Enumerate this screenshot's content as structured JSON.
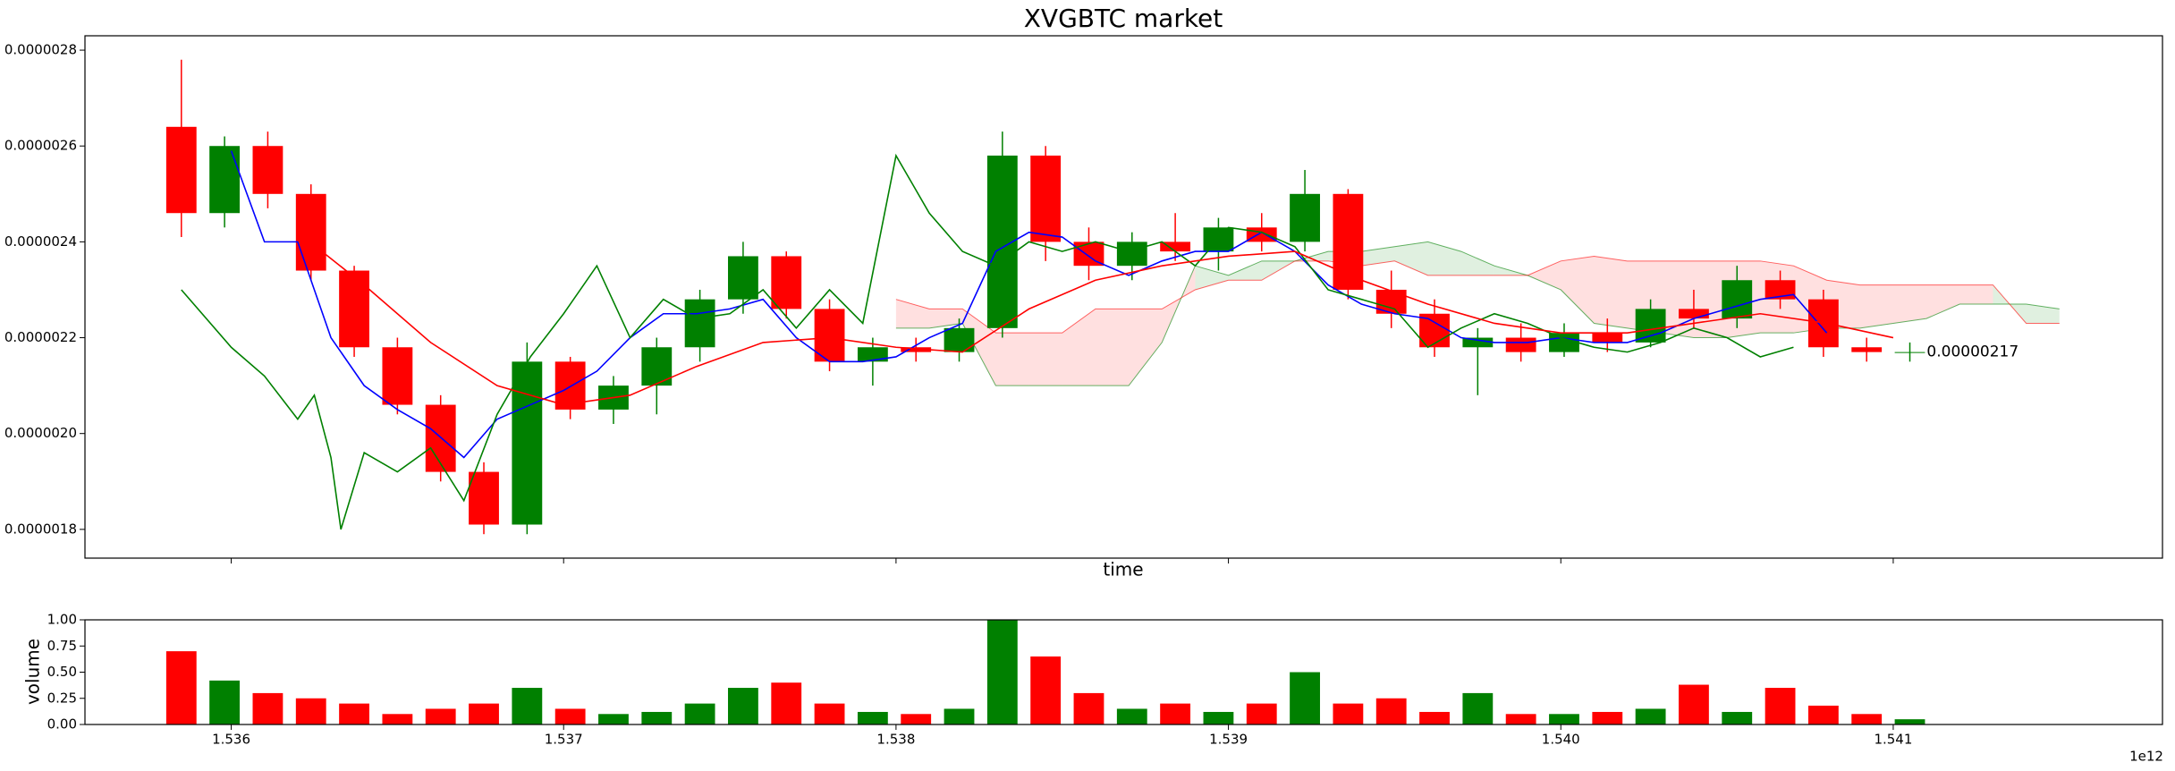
{
  "chart_data": {
    "type": "candlestick",
    "title": "XVGBTC market",
    "xlabel": "time",
    "x_offset_label": "1e12",
    "annotation": "0.00000217",
    "xlim": [
      1.53556,
      1.54181
    ],
    "xticks": [
      1.536,
      1.537,
      1.538,
      1.539,
      {
        "value": 1.54,
        "label": "1.540"
      },
      1.541
    ],
    "ylim": [
      1.74e-06,
      2.83e-06
    ],
    "yticks": [
      {
        "value": 1.8e-06,
        "label": "0.0000018"
      },
      {
        "value": 2e-06,
        "label": "0.0000020"
      },
      {
        "value": 2.2e-06,
        "label": "0.0000022"
      },
      {
        "value": 2.4e-06,
        "label": "0.0000024"
      },
      {
        "value": 2.6e-06,
        "label": "0.0000026"
      },
      {
        "value": 2.8e-06,
        "label": "0.0000028"
      }
    ],
    "colors": {
      "up": "#008000",
      "down": "#ff0000"
    },
    "candles": {
      "x": [
        1.53585,
        1.53598,
        1.53611,
        1.53624,
        1.53637,
        1.5365,
        1.53663,
        1.53676,
        1.53689,
        1.53702,
        1.53715,
        1.53728,
        1.53741,
        1.53754,
        1.53767,
        1.5378,
        1.53793,
        1.53806,
        1.53819,
        1.53832,
        1.53845,
        1.53858,
        1.53871,
        1.53884,
        1.53897,
        1.5391,
        1.53923,
        1.53936,
        1.53949,
        1.53962,
        1.53975,
        1.53988,
        1.54001,
        1.54014,
        1.54027,
        1.5404,
        1.54053,
        1.54066,
        1.54079,
        1.54092,
        1.54105
      ],
      "open": [
        2.64e-06,
        2.46e-06,
        2.6e-06,
        2.5e-06,
        2.34e-06,
        2.18e-06,
        2.06e-06,
        1.92e-06,
        1.81e-06,
        2.15e-06,
        2.05e-06,
        2.1e-06,
        2.18e-06,
        2.28e-06,
        2.37e-06,
        2.26e-06,
        2.15e-06,
        2.18e-06,
        2.17e-06,
        2.22e-06,
        2.58e-06,
        2.4e-06,
        2.35e-06,
        2.4e-06,
        2.38e-06,
        2.43e-06,
        2.4e-06,
        2.5e-06,
        2.3e-06,
        2.25e-06,
        2.18e-06,
        2.2e-06,
        2.17e-06,
        2.21e-06,
        2.19e-06,
        2.26e-06,
        2.24e-06,
        2.32e-06,
        2.28e-06,
        2.18e-06,
        2.17e-06
      ],
      "high": [
        2.78e-06,
        2.62e-06,
        2.63e-06,
        2.52e-06,
        2.35e-06,
        2.2e-06,
        2.08e-06,
        1.94e-06,
        2.19e-06,
        2.16e-06,
        2.12e-06,
        2.2e-06,
        2.3e-06,
        2.4e-06,
        2.38e-06,
        2.28e-06,
        2.2e-06,
        2.2e-06,
        2.24e-06,
        2.63e-06,
        2.6e-06,
        2.43e-06,
        2.42e-06,
        2.46e-06,
        2.45e-06,
        2.46e-06,
        2.55e-06,
        2.51e-06,
        2.34e-06,
        2.28e-06,
        2.22e-06,
        2.23e-06,
        2.23e-06,
        2.24e-06,
        2.28e-06,
        2.3e-06,
        2.35e-06,
        2.34e-06,
        2.3e-06,
        2.2e-06,
        2.19e-06
      ],
      "low": [
        2.41e-06,
        2.43e-06,
        2.47e-06,
        2.32e-06,
        2.16e-06,
        2.04e-06,
        1.9e-06,
        1.79e-06,
        1.79e-06,
        2.03e-06,
        2.02e-06,
        2.04e-06,
        2.15e-06,
        2.25e-06,
        2.24e-06,
        2.13e-06,
        2.1e-06,
        2.15e-06,
        2.15e-06,
        2.2e-06,
        2.36e-06,
        2.32e-06,
        2.32e-06,
        2.36e-06,
        2.34e-06,
        2.38e-06,
        2.38e-06,
        2.28e-06,
        2.22e-06,
        2.16e-06,
        2.08e-06,
        2.15e-06,
        2.16e-06,
        2.17e-06,
        2.18e-06,
        2.22e-06,
        2.22e-06,
        2.26e-06,
        2.16e-06,
        2.15e-06,
        2.15e-06
      ],
      "close": [
        2.46e-06,
        2.6e-06,
        2.5e-06,
        2.34e-06,
        2.18e-06,
        2.06e-06,
        1.92e-06,
        1.81e-06,
        2.15e-06,
        2.05e-06,
        2.1e-06,
        2.18e-06,
        2.28e-06,
        2.37e-06,
        2.26e-06,
        2.15e-06,
        2.18e-06,
        2.17e-06,
        2.22e-06,
        2.58e-06,
        2.4e-06,
        2.35e-06,
        2.4e-06,
        2.38e-06,
        2.43e-06,
        2.4e-06,
        2.5e-06,
        2.3e-06,
        2.25e-06,
        2.18e-06,
        2.2e-06,
        2.17e-06,
        2.21e-06,
        2.19e-06,
        2.26e-06,
        2.24e-06,
        2.32e-06,
        2.28e-06,
        2.18e-06,
        2.17e-06,
        2.17e-06
      ]
    },
    "lines": [
      {
        "color": "#0000ff",
        "x": [
          1.536,
          1.5361,
          1.5362,
          1.5363,
          1.5364,
          1.5365,
          1.5366,
          1.5367,
          1.5368,
          1.5369,
          1.537,
          1.5371,
          1.5372,
          1.5373,
          1.5374,
          1.5375,
          1.5376,
          1.5377,
          1.5378,
          1.5379,
          1.538,
          1.5381,
          1.5382,
          1.5383,
          1.5384,
          1.5385,
          1.5386,
          1.5387,
          1.5388,
          1.5389,
          1.539,
          1.5391,
          1.5392,
          1.5393,
          1.5394,
          1.5395,
          1.5396,
          1.5397,
          1.5398,
          1.5399,
          1.54,
          1.5401,
          1.5402,
          1.5403,
          1.5404,
          1.5405,
          1.5406,
          1.5407,
          1.5408
        ],
        "values": [
          2.59e-06,
          2.4e-06,
          2.4e-06,
          2.2e-06,
          2.1e-06,
          2.05e-06,
          2.01e-06,
          1.95e-06,
          2.03e-06,
          2.06e-06,
          2.09e-06,
          2.13e-06,
          2.2e-06,
          2.25e-06,
          2.25e-06,
          2.26e-06,
          2.28e-06,
          2.2e-06,
          2.15e-06,
          2.15e-06,
          2.16e-06,
          2.2e-06,
          2.23e-06,
          2.38e-06,
          2.42e-06,
          2.41e-06,
          2.36e-06,
          2.33e-06,
          2.36e-06,
          2.38e-06,
          2.38e-06,
          2.42e-06,
          2.38e-06,
          2.31e-06,
          2.27e-06,
          2.25e-06,
          2.24e-06,
          2.2e-06,
          2.19e-06,
          2.19e-06,
          2.2e-06,
          2.19e-06,
          2.19e-06,
          2.21e-06,
          2.24e-06,
          2.26e-06,
          2.28e-06,
          2.29e-06,
          2.21e-06
        ]
      },
      {
        "color": "#008000",
        "x": [
          1.53585,
          1.536,
          1.5361,
          1.5362,
          1.53625,
          1.5363,
          1.53633,
          1.5364,
          1.5365,
          1.5366,
          1.5367,
          1.5368,
          1.5369,
          1.537,
          1.5371,
          1.5372,
          1.5373,
          1.5374,
          1.5375,
          1.5376,
          1.5377,
          1.5378,
          1.5379,
          1.538,
          1.5381,
          1.5382,
          1.5383,
          1.5384,
          1.5385,
          1.5386,
          1.5387,
          1.5388,
          1.5389,
          1.539,
          1.5391,
          1.5392,
          1.5393,
          1.5394,
          1.5395,
          1.5396,
          1.5397,
          1.5398,
          1.5399,
          1.54,
          1.5401,
          1.5402,
          1.5403,
          1.5404,
          1.5405,
          1.5406,
          1.5407
        ],
        "values": [
          2.3e-06,
          2.18e-06,
          2.12e-06,
          2.03e-06,
          2.08e-06,
          1.95e-06,
          1.8e-06,
          1.96e-06,
          1.92e-06,
          1.97e-06,
          1.86e-06,
          2.04e-06,
          2.16e-06,
          2.25e-06,
          2.35e-06,
          2.2e-06,
          2.28e-06,
          2.24e-06,
          2.25e-06,
          2.3e-06,
          2.22e-06,
          2.3e-06,
          2.23e-06,
          2.58e-06,
          2.46e-06,
          2.38e-06,
          2.35e-06,
          2.4e-06,
          2.38e-06,
          2.4e-06,
          2.38e-06,
          2.4e-06,
          2.35e-06,
          2.43e-06,
          2.42e-06,
          2.39e-06,
          2.3e-06,
          2.28e-06,
          2.26e-06,
          2.18e-06,
          2.22e-06,
          2.25e-06,
          2.23e-06,
          2.2e-06,
          2.18e-06,
          2.17e-06,
          2.19e-06,
          2.22e-06,
          2.2e-06,
          2.16e-06,
          2.18e-06
        ]
      },
      {
        "color": "#ff0000",
        "x": [
          1.5362,
          1.5364,
          1.5366,
          1.5368,
          1.537,
          1.5372,
          1.5374,
          1.5376,
          1.5378,
          1.538,
          1.5382,
          1.5384,
          1.5386,
          1.5388,
          1.539,
          1.5392,
          1.5394,
          1.5396,
          1.5398,
          1.54,
          1.5402,
          1.5404,
          1.5406,
          1.5408,
          1.541
        ],
        "values": [
          2.42e-06,
          2.31e-06,
          2.19e-06,
          2.1e-06,
          2.06e-06,
          2.08e-06,
          2.14e-06,
          2.19e-06,
          2.2e-06,
          2.18e-06,
          2.17e-06,
          2.26e-06,
          2.32e-06,
          2.35e-06,
          2.37e-06,
          2.38e-06,
          2.32e-06,
          2.27e-06,
          2.23e-06,
          2.21e-06,
          2.21e-06,
          2.23e-06,
          2.25e-06,
          2.23e-06,
          2.2e-06
        ]
      }
    ],
    "cloud": {
      "color_a": "#008000",
      "color_b": "#ff0000",
      "x": [
        1.538,
        1.5381,
        1.5382,
        1.5383,
        1.5384,
        1.5385,
        1.5386,
        1.5387,
        1.5388,
        1.5389,
        1.539,
        1.5391,
        1.5392,
        1.5393,
        1.5394,
        1.5395,
        1.5396,
        1.5397,
        1.5398,
        1.5399,
        1.54,
        1.5401,
        1.5402,
        1.5403,
        1.5404,
        1.5405,
        1.5406,
        1.5407,
        1.5408,
        1.5409,
        1.541,
        1.5411,
        1.5412,
        1.5413,
        1.5414,
        1.5415
      ],
      "span_a": [
        2.22e-06,
        2.22e-06,
        2.23e-06,
        2.1e-06,
        2.1e-06,
        2.1e-06,
        2.1e-06,
        2.1e-06,
        2.19e-06,
        2.35e-06,
        2.33e-06,
        2.36e-06,
        2.36e-06,
        2.38e-06,
        2.38e-06,
        2.39e-06,
        2.4e-06,
        2.38e-06,
        2.35e-06,
        2.33e-06,
        2.3e-06,
        2.23e-06,
        2.22e-06,
        2.21e-06,
        2.2e-06,
        2.2e-06,
        2.21e-06,
        2.21e-06,
        2.22e-06,
        2.22e-06,
        2.23e-06,
        2.24e-06,
        2.27e-06,
        2.27e-06,
        2.27e-06,
        2.26e-06
      ],
      "span_b": [
        2.28e-06,
        2.26e-06,
        2.26e-06,
        2.21e-06,
        2.21e-06,
        2.21e-06,
        2.26e-06,
        2.26e-06,
        2.26e-06,
        2.3e-06,
        2.32e-06,
        2.32e-06,
        2.36e-06,
        2.36e-06,
        2.35e-06,
        2.36e-06,
        2.33e-06,
        2.33e-06,
        2.33e-06,
        2.33e-06,
        2.36e-06,
        2.37e-06,
        2.36e-06,
        2.36e-06,
        2.36e-06,
        2.36e-06,
        2.36e-06,
        2.35e-06,
        2.32e-06,
        2.31e-06,
        2.31e-06,
        2.31e-06,
        2.31e-06,
        2.31e-06,
        2.23e-06,
        2.23e-06
      ]
    },
    "volume": {
      "ylabel": "volume",
      "ylim": [
        0,
        1
      ],
      "yticks": [
        {
          "value": 0,
          "label": "0.00"
        },
        {
          "value": 0.25,
          "label": "0.25"
        },
        {
          "value": 0.5,
          "label": "0.50"
        },
        {
          "value": 0.75,
          "label": "0.75"
        },
        {
          "value": 1,
          "label": "1.00"
        }
      ],
      "values": [
        0.7,
        0.42,
        0.3,
        0.25,
        0.2,
        0.1,
        0.15,
        0.2,
        0.35,
        0.15,
        0.1,
        0.12,
        0.2,
        0.35,
        0.4,
        0.2,
        0.12,
        0.1,
        0.15,
        1.0,
        0.65,
        0.3,
        0.15,
        0.2,
        0.12,
        0.2,
        0.5,
        0.2,
        0.25,
        0.12,
        0.3,
        0.1,
        0.1,
        0.12,
        0.15,
        0.38,
        0.12,
        0.35,
        0.18,
        0.1,
        0.05
      ]
    }
  }
}
